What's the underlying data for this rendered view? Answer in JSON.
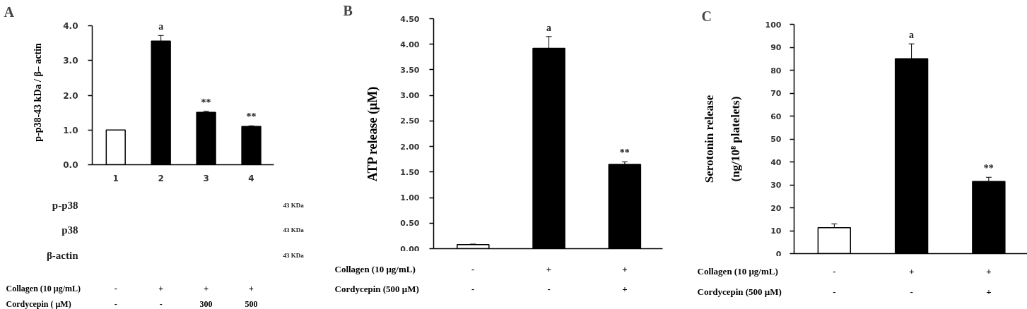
{
  "chart_data": [
    {
      "type": "bar",
      "title": "A",
      "ylabel": "p-p38-43 kDa / β– actin",
      "categories": [
        "1",
        "2",
        "3",
        "4"
      ],
      "values": [
        1.0,
        3.56,
        1.51,
        1.1
      ],
      "colors": [
        "#ffffff",
        "#000000",
        "#000000",
        "#000000"
      ],
      "errors": [
        null,
        0.16,
        0.03,
        0.02
      ],
      "value_labels": [
        null,
        "a",
        "**",
        "**"
      ],
      "ylim": [
        0,
        4
      ],
      "yticks": [
        {
          "value": 0,
          "label": "0.0"
        },
        {
          "value": 1,
          "label": "1.0"
        },
        {
          "value": 2,
          "label": "2.0"
        },
        {
          "value": 3,
          "label": "3.0"
        },
        {
          "value": 4,
          "label": "4.0"
        }
      ]
    },
    {
      "type": "other",
      "categories": [
        "-\n-",
        "+\n-",
        "+\n300",
        "+\n500"
      ],
      "xlabel": "Collagen (10 μg/mL)\nCordycepin ( μM)",
      "y_categories": [
        "p-p38",
        "p38",
        "β-actin"
      ],
      "y2_categories": [
        "43 KDa",
        "43 KDa",
        "43 KDa"
      ]
    },
    {
      "type": "bar",
      "title": "B",
      "ylabel": "ATP release (μM)",
      "xlabel": "Collagen (10 μg/mL)\nCordycepin (500 μM)",
      "categories": [
        "-\n-",
        "+\n-",
        "+\n+"
      ],
      "values": [
        0.08,
        3.92,
        1.65
      ],
      "colors": [
        "#ffffff",
        "#000000",
        "#000000"
      ],
      "errors": [
        0.01,
        0.23,
        0.05
      ],
      "value_labels": [
        null,
        "a",
        "**"
      ],
      "ylim": [
        0,
        4.5
      ],
      "yticks": [
        {
          "value": 0,
          "label": "0.00"
        },
        {
          "value": 0.5,
          "label": "0.50"
        },
        {
          "value": 1,
          "label": "1.00"
        },
        {
          "value": 1.5,
          "label": "1.50"
        },
        {
          "value": 2,
          "label": "2.00"
        },
        {
          "value": 2.5,
          "label": "2.50"
        },
        {
          "value": 3,
          "label": "3.00"
        },
        {
          "value": 3.5,
          "label": "3.50"
        },
        {
          "value": 4,
          "label": "4.00"
        },
        {
          "value": 4.5,
          "label": "4.50"
        }
      ]
    },
    {
      "type": "bar",
      "title": "C",
      "ylabel": "Serotonin release\n(ng/10⁸ platelets)",
      "xlabel": "Collagen (10 μg/mL)\nCordycepin (500 μM)",
      "categories": [
        "-\n-",
        "+\n-",
        "+\n+"
      ],
      "values": [
        11.3,
        85,
        31.5
      ],
      "colors": [
        "#ffffff",
        "#000000",
        "#000000"
      ],
      "errors": [
        1.7,
        6.5,
        1.8
      ],
      "value_labels": [
        null,
        "a",
        "**"
      ],
      "ylim": [
        0,
        100
      ],
      "yticks": [
        0,
        10,
        20,
        30,
        40,
        50,
        60,
        70,
        80,
        90,
        100
      ]
    }
  ]
}
